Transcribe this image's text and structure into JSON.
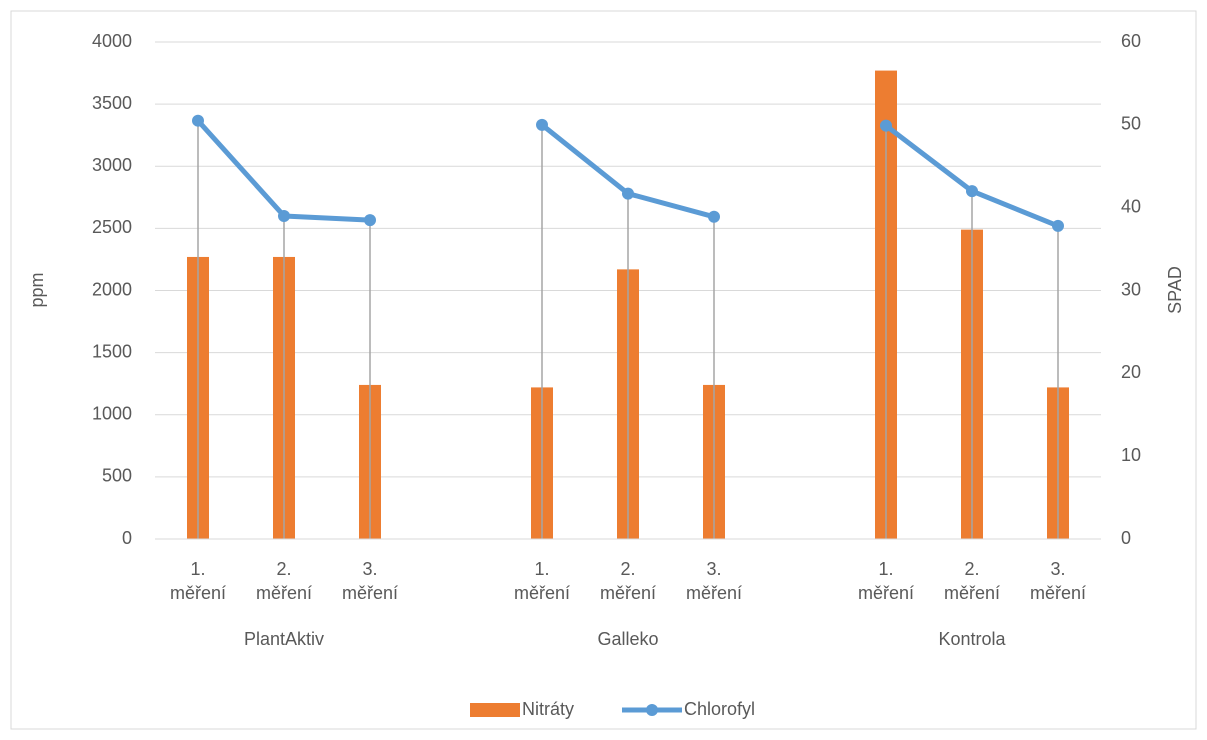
{
  "chart_data": {
    "type": "bar-line",
    "categories": [
      "1. měření",
      "2. měření",
      "3. měření",
      null,
      "1. měření",
      "2. měření",
      "3. měření",
      null,
      "1. měření",
      "2. měření",
      "3. měření"
    ],
    "groups": [
      "PlantAktiv",
      "Galleko",
      "Kontrola"
    ],
    "y_label": "ppm",
    "y2_label": "SPAD",
    "ylim": [
      0,
      4000
    ],
    "yticks": [
      0,
      500,
      1000,
      1500,
      2000,
      2500,
      3000,
      3500,
      4000
    ],
    "y2lim": [
      0,
      60
    ],
    "y2ticks": [
      0,
      10,
      20,
      30,
      40,
      50,
      60
    ],
    "grid": true,
    "legend": "bottom",
    "series": [
      {
        "name": "Nitráty",
        "type": "bar",
        "color": "#ED7D31",
        "values": [
          2270,
          2270,
          1240,
          null,
          1220,
          2170,
          1240,
          null,
          3770,
          2490,
          1220
        ]
      },
      {
        "name": "Chlorofyl",
        "type": "line",
        "axis": "y2",
        "color": "#5B9BD5",
        "values": [
          50.5,
          39.0,
          38.5,
          null,
          50.0,
          41.7,
          38.9,
          null,
          49.9,
          42.0,
          37.8
        ]
      }
    ]
  }
}
